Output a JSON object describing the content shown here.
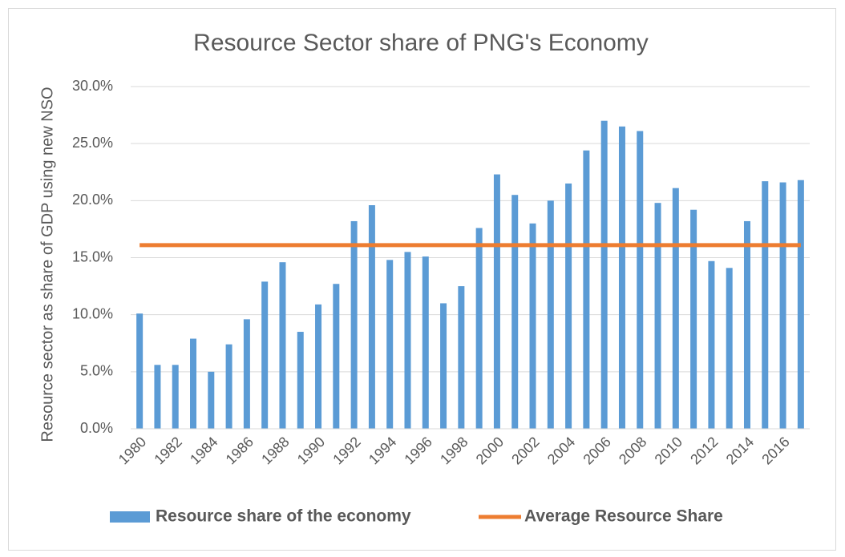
{
  "chart_data": {
    "type": "bar",
    "title": "Resource Sector share of PNG's Economy",
    "y_label": "Resource sector as share of GDP using new NSO",
    "categories": [
      "1980",
      null,
      "1982",
      null,
      "1984",
      null,
      "1986",
      null,
      "1988",
      null,
      "1990",
      null,
      "1992",
      null,
      "1994",
      null,
      "1996",
      null,
      "1998",
      null,
      "2000",
      null,
      "2002",
      null,
      "2004",
      null,
      "2006",
      null,
      "2008",
      null,
      "2010",
      null,
      "2012",
      null,
      "2014",
      null,
      "2016",
      null
    ],
    "series": [
      {
        "name": "Resource share of the economy",
        "type": "bar",
        "color": "#5b9bd5",
        "values": [
          10.1,
          5.6,
          5.6,
          7.9,
          5.0,
          7.4,
          9.6,
          12.9,
          14.6,
          8.5,
          10.9,
          12.7,
          18.2,
          19.6,
          14.8,
          15.5,
          15.1,
          11.0,
          12.5,
          17.6,
          22.3,
          20.5,
          18.0,
          20.0,
          21.5,
          24.4,
          27.0,
          26.5,
          26.1,
          19.8,
          21.1,
          19.2,
          14.7,
          14.1,
          18.2,
          21.7,
          21.6,
          21.8
        ]
      },
      {
        "name": "Average Resource Share",
        "type": "line",
        "color": "#ed7d31",
        "values": [
          16.1,
          16.1,
          16.1,
          16.1,
          16.1,
          16.1,
          16.1,
          16.1,
          16.1,
          16.1,
          16.1,
          16.1,
          16.1,
          16.1,
          16.1,
          16.1,
          16.1,
          16.1,
          16.1,
          16.1,
          16.1,
          16.1,
          16.1,
          16.1,
          16.1,
          16.1,
          16.1,
          16.1,
          16.1,
          16.1,
          16.1,
          16.1,
          16.1,
          16.1,
          16.1,
          16.1,
          16.1,
          16.1
        ]
      }
    ],
    "ylim": [
      0,
      30
    ],
    "yticks": [
      {
        "value": 0,
        "label": "0.0%"
      },
      {
        "value": 5,
        "label": "5.0%"
      },
      {
        "value": 10,
        "label": "10.0%"
      },
      {
        "value": 15,
        "label": "15.0%"
      },
      {
        "value": 20,
        "label": "20.0%"
      },
      {
        "value": 25,
        "label": "25.0%"
      },
      {
        "value": 30,
        "label": "30.0%"
      }
    ],
    "grid": true,
    "legend": "bottom"
  }
}
